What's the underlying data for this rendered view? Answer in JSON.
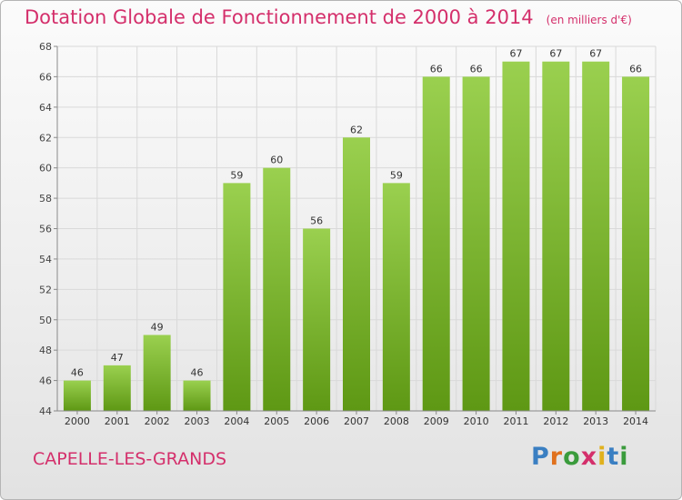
{
  "header": {
    "title": "Dotation Globale de Fonctionnement de 2000 à 2014",
    "unit": "(en milliers d'€)"
  },
  "footer": {
    "city": "CAPELLE-LES-GRANDS",
    "brand": "Proxiti",
    "brand_letter_colors": [
      "#3a7fc2",
      "#e0711d",
      "#3a9b3c",
      "#d42f6b",
      "#e0b11d",
      "#3a7fc2",
      "#3a9b3c"
    ]
  },
  "colors": {
    "accent": "#d42f6b",
    "bar_top": "#9ad04f",
    "bar_bottom": "#5e9814",
    "grid": "#d9d9d9",
    "axis": "#8a8a8a"
  },
  "chart_data": {
    "type": "bar",
    "categories": [
      "2000",
      "2001",
      "2002",
      "2003",
      "2004",
      "2005",
      "2006",
      "2007",
      "2008",
      "2009",
      "2010",
      "2011",
      "2012",
      "2013",
      "2014"
    ],
    "values": [
      46,
      47,
      49,
      46,
      59,
      60,
      56,
      62,
      59,
      66,
      66,
      67,
      67,
      67,
      66
    ],
    "title": "Dotation Globale de Fonctionnement de 2000 à 2014",
    "subtitle": "(en milliers d'€)",
    "xlabel": "",
    "ylabel": "",
    "ylim": [
      44,
      68
    ],
    "yticks": [
      44,
      46,
      48,
      50,
      52,
      54,
      56,
      58,
      60,
      62,
      64,
      66,
      68
    ],
    "grid": true,
    "data_labels": true
  }
}
